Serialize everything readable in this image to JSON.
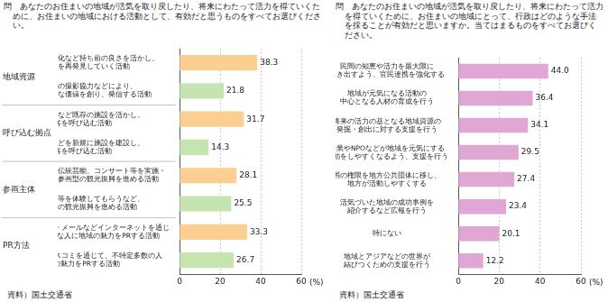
{
  "chart_data": [
    {
      "type": "bar",
      "orientation": "horizontal",
      "title": "問　あなたのお住まいの地域が活気を取り戻したり、将来にわたって活力を得ていくために、お住まいの地域における活動として、有効だと思うものをすべてお選びください。",
      "categories": [
        "景色の美しさや食文化など持ち前の良さを活かし、\n地域の価値を再発見していく活動",
        "ドラマや映画の撮影協力などにより、\n地域において新たな価値を創り、発信する活動",
        "空き店舗や廃校など既存の施設を活かし、\n観光客を呼び込む活動",
        "レジャー施設などを新規に施設を建設し、\n観光客を呼び込む活動",
        "地域において芸術祭、伝統芸能、コンサート等を実施・\n開催するなど、地域参画型の観光振興を進める活動",
        "農業や環境保護等を体験してもらうなど、\n観光客体験型の観光振興を進める活動",
        "ホームページ・ブログ・メールなどインターネットを通じ\nて、関心のありそうな人に地域の魅力をPRする活動",
        "新聞・テレビなどマスコミを通じて、不特定多数の人\nに地域の魅力をPRする活動"
      ],
      "category_groups": [
        "地域資源",
        "地域資源",
        "呼び込む拠点",
        "呼び込む拠点",
        "参画主体",
        "参画主体",
        "PR方法",
        "PR方法"
      ],
      "values": [
        38.3,
        21.8,
        31.7,
        14.3,
        28.1,
        25.5,
        33.3,
        26.7
      ],
      "value_labels": [
        "38.3",
        "21.8",
        "31.7",
        "14.3",
        "28.1",
        "25.5",
        "33.3",
        "26.7"
      ],
      "colors": [
        "#fbcf92",
        "#c6e4b0",
        "#fbcf92",
        "#c6e4b0",
        "#fbcf92",
        "#c6e4b0",
        "#fbcf92",
        "#c6e4b0"
      ],
      "data_labels": true,
      "xlim": [
        0,
        60
      ],
      "xticks": [
        0,
        20,
        40,
        60
      ],
      "xlabel": "(%)",
      "grid": true,
      "source": "資料）国土交通省"
    },
    {
      "type": "bar",
      "orientation": "horizontal",
      "title": "問　あなたのお住まいの地域が活気を取り戻したり、将来にわたって活力を得ていくために、お住まいの地域にとって、行政はどのような手法を採ることが有効だと思いますか。当てはまるものをすべてお選びください。",
      "categories": [
        "民間の知恵や活力を最大限に\n引き出すよう、官民連携を強化する",
        "地域が元気になる活動の\n中心となる人材の育成を行う",
        "将来の活力の基となる地域資源の\n発掘・創出に対する支援を行う",
        "企業やNPOなどが地域を元気にする\n活動をしやすくなるよう、支援を行う",
        "国の権限を地方公共団体に移し、\n地方が活動しやすくする",
        "活気づいた地域の成功事例を\n紹介するなど広報を行う",
        "特にない",
        "地域とアジアなどの世界が\n結びつくための支援を行う"
      ],
      "values": [
        44.0,
        36.4,
        34.1,
        29.5,
        27.4,
        23.4,
        20.1,
        12.2
      ],
      "value_labels": [
        "44.0",
        "36.4",
        "34.1",
        "29.5",
        "27.4",
        "23.4",
        "20.1",
        "12.2"
      ],
      "color": "#e0a6d4",
      "data_labels": true,
      "xlim": [
        0,
        60
      ],
      "xticks": [
        0,
        20,
        40,
        60
      ],
      "xlabel": "(%)",
      "grid": true,
      "source": "資料）国土交通省"
    }
  ]
}
